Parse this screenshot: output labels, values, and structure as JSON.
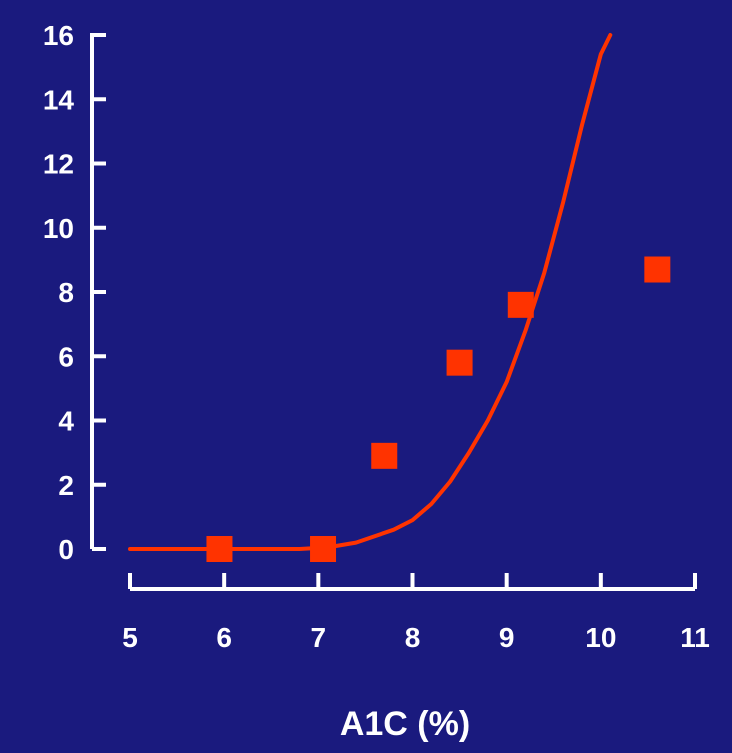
{
  "chart_data": {
    "type": "scatter",
    "title": "",
    "xlabel": "A1C (%)",
    "ylabel": "",
    "xlim": [
      5,
      11
    ],
    "ylim": [
      0,
      16
    ],
    "x_ticks": [
      "5",
      "6",
      "7",
      "8",
      "9",
      "10",
      "11"
    ],
    "y_ticks": [
      "0",
      "2",
      "4",
      "6",
      "8",
      "10",
      "12",
      "14",
      "16"
    ],
    "grid": false,
    "legend": "none",
    "series": [
      {
        "kind": "points",
        "marker": "square",
        "color": "#ff3300",
        "x": [
          5.95,
          7.05,
          7.7,
          8.5,
          9.15,
          10.6
        ],
        "y": [
          0.0,
          0.0,
          2.9,
          5.8,
          7.6,
          8.7
        ]
      },
      {
        "kind": "line",
        "color": "#ff3300",
        "x": [
          5.0,
          6.0,
          6.8,
          7.1,
          7.4,
          7.8,
          8.0,
          8.2,
          8.4,
          8.6,
          8.8,
          9.0,
          9.2,
          9.4,
          9.6,
          9.8,
          10.0,
          10.1
        ],
        "y": [
          0.0,
          0.0,
          0.0,
          0.05,
          0.2,
          0.6,
          0.9,
          1.4,
          2.1,
          3.0,
          4.0,
          5.2,
          6.8,
          8.6,
          10.8,
          13.2,
          15.4,
          16.0
        ]
      }
    ],
    "axis_color": "#ffffff",
    "background": "#1a1a7e"
  }
}
